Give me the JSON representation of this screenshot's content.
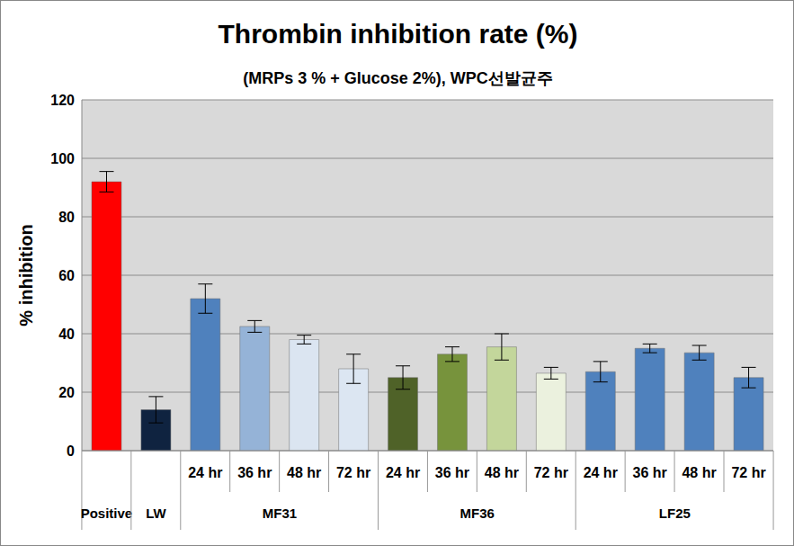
{
  "chart_data": {
    "type": "bar",
    "title": "Thrombin inhibition rate (%)",
    "subtitle": "(MRPs 3 % + Glucose 2%), WPC선발균주",
    "y_label": "% inhibition",
    "categories": [
      null,
      null,
      "24 hr",
      "36 hr",
      "48 hr",
      "72 hr",
      "24 hr",
      "36 hr",
      "48 hr",
      "72 hr",
      "24 hr",
      "36 hr",
      "48 hr",
      "72 hr"
    ],
    "groups": [
      {
        "label": "Positive",
        "size": 1
      },
      {
        "label": "LW",
        "size": 1
      },
      {
        "label": "MF31",
        "size": 4
      },
      {
        "label": "MF36",
        "size": 4
      },
      {
        "label": "LF25",
        "size": 4
      }
    ],
    "values": [
      92,
      14,
      52,
      42.5,
      38,
      28,
      25,
      33,
      35.5,
      26.5,
      27,
      35,
      33.5,
      25
    ],
    "errors": [
      3.5,
      4.5,
      5,
      2,
      1.5,
      5,
      4,
      2.5,
      4.5,
      2,
      3.5,
      1.5,
      2.5,
      3.5
    ],
    "colors": [
      "#ff0000",
      "#0f2340",
      "#4f81bd",
      "#95b3d7",
      "#dbe5f1",
      "#dce6f2",
      "#4f6228",
      "#77933c",
      "#c3d69b",
      "#ebf1de",
      "#4f81bd",
      "#4f81bd",
      "#4f81bd",
      "#4f81bd"
    ],
    "ylim": [
      0,
      120
    ],
    "yticks": [
      0,
      20,
      40,
      60,
      80,
      100,
      120
    ],
    "grid": true
  }
}
